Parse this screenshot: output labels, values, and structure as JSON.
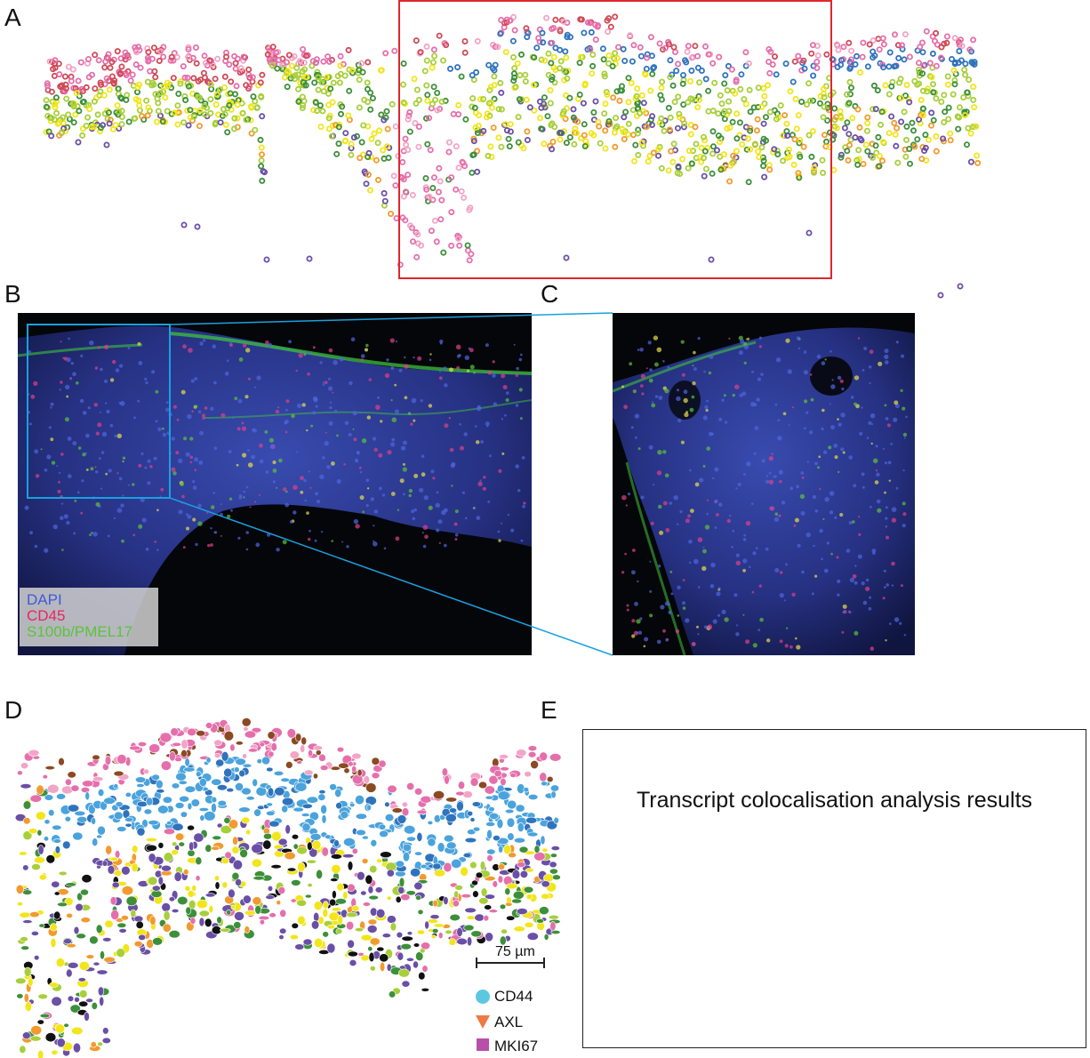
{
  "panels": {
    "a": {
      "letter": "A"
    },
    "b": {
      "letter": "B"
    },
    "c": {
      "letter": "C"
    },
    "d": {
      "letter": "D"
    },
    "e": {
      "letter": "E",
      "text": "Transcript colocalisation analysis results"
    }
  },
  "stain_legend": [
    {
      "label": "DAPI",
      "color": "#3e5bd6"
    },
    {
      "label": "CD45",
      "color": "#e8265e"
    },
    {
      "label": "S100b/PMEL17",
      "color": "#5cc33a"
    }
  ],
  "scale_bar": {
    "label": "75 µm"
  },
  "transcript_legend": [
    {
      "label": "CD44",
      "marker": "circle-icon",
      "color": "#5bc8e0"
    },
    {
      "label": "AXL",
      "marker": "triangle-down-icon",
      "color": "#ee7a45"
    },
    {
      "label": "MKI67",
      "marker": "square-icon",
      "color": "#b84fa8"
    }
  ],
  "cell_palette": {
    "pink": "#e56fab",
    "light_pink": "#f2a5c6",
    "red": "#cf4a56",
    "blue": "#2f73bd",
    "light_blue": "#4aa3dc",
    "yellow": "#f2e51a",
    "lime": "#a7cf3a",
    "green": "#3d8f3a",
    "purple": "#6a4fa6",
    "orange": "#f29a2e",
    "brown": "#8a4a22",
    "black": "#111111"
  },
  "zoom_box_color_a": "#e0262d",
  "zoom_box_color_b": "#1aa0e0"
}
